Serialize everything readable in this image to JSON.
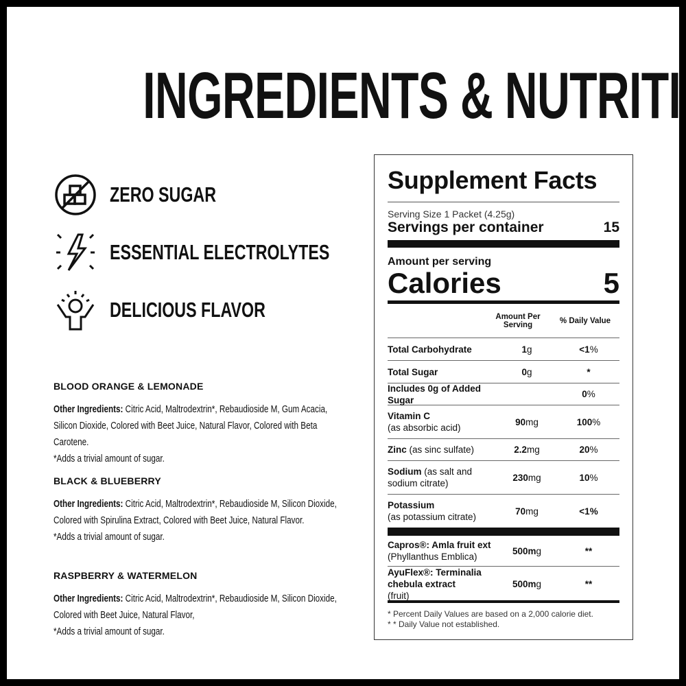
{
  "title": "INGREDIENTS & NUTRITION",
  "features": [
    {
      "icon": "no-sugar-cubes-icon",
      "label": "ZERO SUGAR"
    },
    {
      "icon": "lightning-bolt-icon",
      "label": "ESSENTIAL ELECTROLYTES"
    },
    {
      "icon": "happy-person-icon",
      "label": "DELICIOUS FLAVOR"
    }
  ],
  "flavors": [
    {
      "name": "BLOOD ORANGE & LEMONADE",
      "label": "Other Ingredients:",
      "text": " Citric Acid, Maltrodextrin*, Rebaudioside M, Gum Acacia, Silicon Dioxide, Colored with Beet Juice, Natural Flavor, Colored with Beta Carotene.",
      "note": "*Adds a trivial amount of sugar."
    },
    {
      "name": "BLACK & BLUEBERRY",
      "label": "Other Ingredients:",
      "text": " Citric Acid, Maltrodextrin*, Rebaudioside M, Silicon Dioxide, Colored with Spirulina Extract, Colored with Beet Juice, Natural Flavor.",
      "note": "*Adds a trivial amount of sugar."
    },
    {
      "name": "RASPBERRY & WATERMELON",
      "label": "Other Ingredients:",
      "text": " Citric Acid, Maltrodextrin*, Rebaudioside M, Silicon Dioxide, Colored with Beet Juice, Natural Flavor,",
      "note": "*Adds a trivial amount of sugar."
    }
  ],
  "facts": {
    "title": "Supplement Facts",
    "serving_size": "Serving Size 1 Packet (4.25g)",
    "servings_label": "Servings per container",
    "servings_value": "15",
    "amount_per_serving": "Amount per serving",
    "calories_label": "Calories",
    "calories_value": "5",
    "col_amount": "Amount Per Serving",
    "col_dv": "% Daily Value",
    "rows": [
      {
        "name_b": "Total Carbohydrate",
        "name_r": "",
        "amt_b": "1",
        "amt_u": "g",
        "dv_b": "<1",
        "dv_u": "%"
      },
      {
        "name_b": "Total Sugar",
        "name_r": "",
        "amt_b": "0",
        "amt_u": "g",
        "dv_b": "*",
        "dv_u": ""
      },
      {
        "name_b": "Includes 0g of Added Sugar",
        "name_r": "",
        "amt_b": "",
        "amt_u": "",
        "dv_b": "0",
        "dv_u": "%"
      },
      {
        "name_b": "Vitamin C",
        "name_r": "(as absorbic acid)",
        "amt_b": "90",
        "amt_u": "mg",
        "dv_b": "100",
        "dv_u": "%"
      },
      {
        "name_b": "Zinc",
        "name_r": " (as sinc sulfate)",
        "amt_b": "2.2",
        "amt_u": "mg",
        "dv_b": "20",
        "dv_u": "%"
      },
      {
        "name_b": "Sodium",
        "name_r": " (as salt and sodium citrate)",
        "amt_b": "230",
        "amt_u": "mg",
        "dv_b": "10",
        "dv_u": "%"
      },
      {
        "name_b": "Potassium",
        "name_r": "(as potassium citrate)",
        "amt_b": "70",
        "amt_u": "mg",
        "dv_b": "<1%",
        "dv_u": ""
      }
    ],
    "rows2": [
      {
        "name_b": "Capros®: Amla fruit ext",
        "name_r": "(Phyllanthus Emblica)",
        "amt_b": "500m",
        "amt_u": "g",
        "dv_b": "**",
        "dv_u": ""
      },
      {
        "name_b": "AyuFlex®: Terminalia chebula extract",
        "name_r": "(fruit)",
        "amt_b": "500m",
        "amt_u": "g",
        "dv_b": "**",
        "dv_u": ""
      }
    ],
    "foot1": "* Percent Daily Values are based on a 2,000 calorie diet.",
    "foot2": "* * Daily Value not established."
  }
}
